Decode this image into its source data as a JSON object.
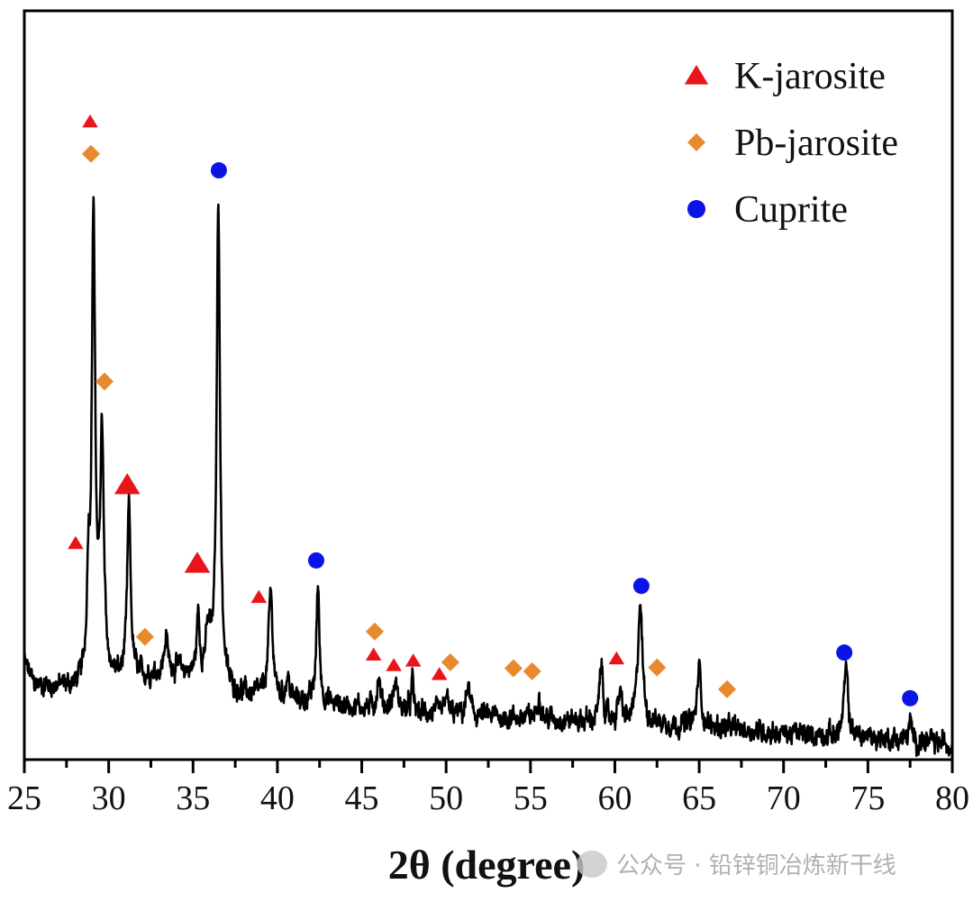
{
  "chart_data": {
    "type": "line",
    "title": "",
    "xlabel": "2θ (degree)",
    "ylabel": "",
    "xlim": [
      25,
      80
    ],
    "ylim": [
      0,
      100
    ],
    "x_ticks": [
      "25",
      "30",
      "35",
      "40",
      "45",
      "50",
      "55",
      "60",
      "65",
      "70",
      "75",
      "80"
    ],
    "x_minor_step": 2.5,
    "y_ticks_shown": false,
    "grid": false,
    "legend_placement": "top-right",
    "line_color": "#000000",
    "baseline": [
      [
        25,
        13
      ],
      [
        25.6,
        10
      ],
      [
        28,
        9.5
      ],
      [
        32,
        11
      ],
      [
        34,
        12
      ],
      [
        37,
        9
      ],
      [
        40,
        8
      ],
      [
        45,
        7
      ],
      [
        50,
        6
      ],
      [
        55,
        5.5
      ],
      [
        60,
        5
      ],
      [
        65,
        4.5
      ],
      [
        70,
        3.5
      ],
      [
        75,
        3
      ],
      [
        80,
        2
      ]
    ],
    "peaks": [
      {
        "x": 28.8,
        "height": 13,
        "width": 0.1
      },
      {
        "x": 29.1,
        "height": 62,
        "width": 0.12
      },
      {
        "x": 29.6,
        "height": 32,
        "width": 0.13
      },
      {
        "x": 31.2,
        "height": 23,
        "width": 0.12
      },
      {
        "x": 33.4,
        "height": 4.5,
        "width": 0.12
      },
      {
        "x": 35.3,
        "height": 8,
        "width": 0.1
      },
      {
        "x": 35.9,
        "height": 6,
        "width": 0.2
      },
      {
        "x": 36.5,
        "height": 65,
        "width": 0.12
      },
      {
        "x": 39.6,
        "height": 14,
        "width": 0.15
      },
      {
        "x": 40.6,
        "height": 3,
        "width": 0.12
      },
      {
        "x": 42.4,
        "height": 15.5,
        "width": 0.11
      },
      {
        "x": 46.0,
        "height": 4,
        "width": 0.12
      },
      {
        "x": 47.0,
        "height": 3.5,
        "width": 0.15
      },
      {
        "x": 48.0,
        "height": 4,
        "width": 0.08
      },
      {
        "x": 50.0,
        "height": 3,
        "width": 0.1
      },
      {
        "x": 51.3,
        "height": 4,
        "width": 0.12
      },
      {
        "x": 55.5,
        "height": 3.5,
        "width": 0.12
      },
      {
        "x": 59.2,
        "height": 7.5,
        "width": 0.12
      },
      {
        "x": 60.3,
        "height": 4,
        "width": 0.12
      },
      {
        "x": 61.5,
        "height": 16,
        "width": 0.16
      },
      {
        "x": 65.0,
        "height": 8,
        "width": 0.13
      },
      {
        "x": 73.7,
        "height": 9,
        "width": 0.14
      },
      {
        "x": 77.5,
        "height": 2.5,
        "width": 0.1
      }
    ],
    "series": [
      {
        "name": "K-jarosite",
        "marker": "triangle",
        "color": "#e8151b",
        "points": [
          [
            28.9,
            85.2
          ],
          [
            28.04,
            28.9
          ],
          [
            31.1,
            36.7
          ],
          [
            35.25,
            26.2
          ],
          [
            38.9,
            21.7
          ],
          [
            45.7,
            14
          ],
          [
            46.9,
            12.6
          ],
          [
            48.05,
            13.2
          ],
          [
            49.6,
            11.4
          ],
          [
            60.1,
            13.5
          ]
        ]
      },
      {
        "name": "Pb-jarosite",
        "marker": "diamond",
        "color": "#e8892e",
        "points": [
          [
            28.95,
            80.9
          ],
          [
            29.75,
            50.5
          ],
          [
            32.15,
            16.4
          ],
          [
            45.77,
            17.1
          ],
          [
            50.25,
            13
          ],
          [
            53.99,
            12.2
          ],
          [
            55.1,
            11.8
          ],
          [
            62.5,
            12.3
          ],
          [
            66.65,
            9.4
          ]
        ]
      },
      {
        "name": "Cuprite",
        "marker": "circle",
        "color": "#0a14e6",
        "points": [
          [
            36.53,
            78.7
          ],
          [
            42.3,
            26.6
          ],
          [
            61.57,
            23.2
          ],
          [
            73.6,
            14.3
          ],
          [
            77.5,
            8.2
          ]
        ]
      }
    ]
  },
  "watermark": {
    "text": "公众号 · 铅锌铜冶炼新干线",
    "icon": "wechat-icon"
  }
}
